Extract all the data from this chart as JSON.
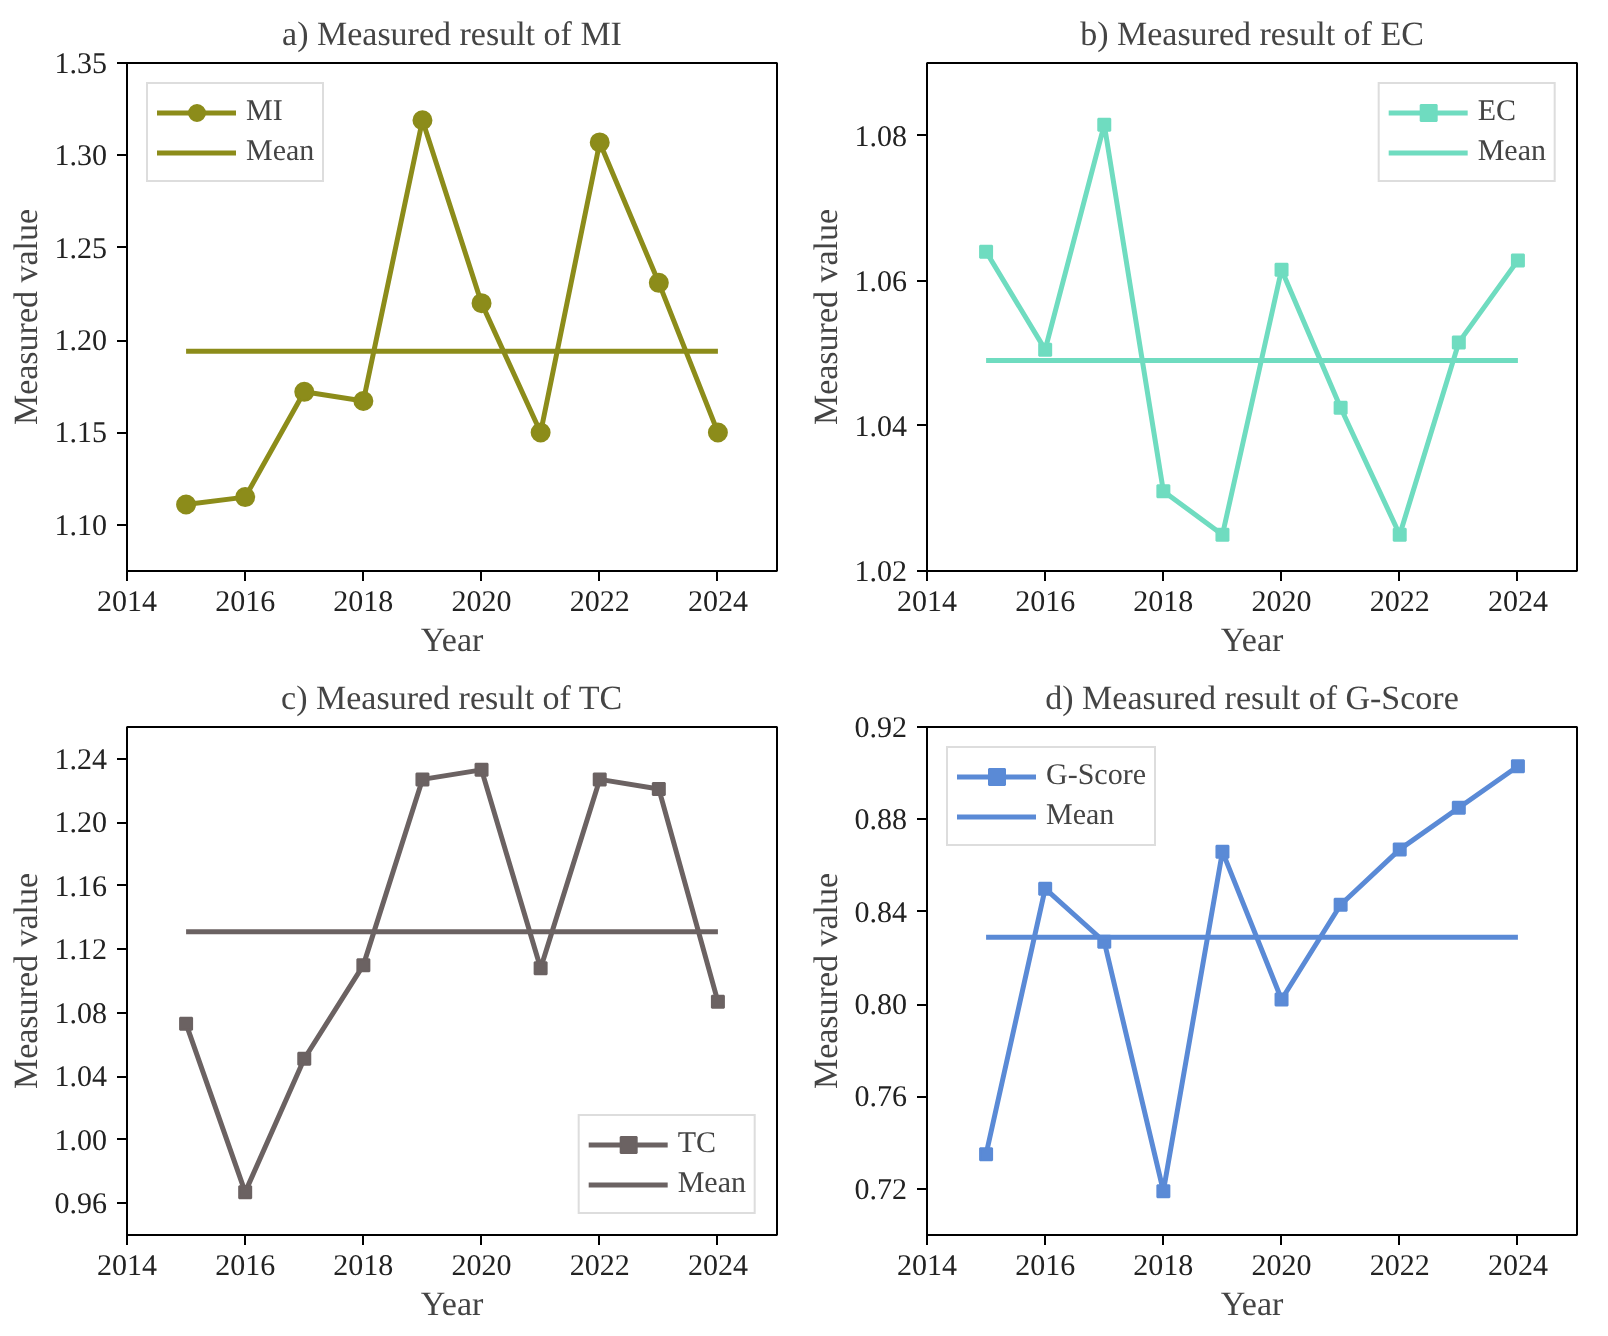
{
  "chart_data": [
    {
      "type": "line",
      "title": "a) Measured result of MI",
      "xlabel": "Year",
      "ylabel": "Measured value",
      "x": [
        2015,
        2016,
        2017,
        2018,
        2019,
        2020,
        2021,
        2022,
        2023,
        2024
      ],
      "series": [
        {
          "name": "MI",
          "color": "#8c8c1a",
          "marker": "circle",
          "values": [
            1.111,
            1.115,
            1.172,
            1.167,
            1.319,
            1.22,
            1.15,
            1.307,
            1.231,
            1.15
          ]
        }
      ],
      "ref_lines": [
        {
          "axis": "y",
          "value": 1.194,
          "label": "Mean",
          "color": "#8c8c1a",
          "line_style": "solid"
        }
      ],
      "xlim": [
        2014,
        2025
      ],
      "xticks": [
        2014,
        2016,
        2018,
        2020,
        2022,
        2024
      ],
      "ylim": [
        1.075,
        1.35
      ],
      "yticks": [
        {
          "value": 1.1,
          "label": "1.10"
        },
        {
          "value": 1.15,
          "label": "1.15"
        },
        {
          "value": 1.2,
          "label": "1.20"
        },
        {
          "value": 1.25,
          "label": "1.25"
        },
        {
          "value": 1.3,
          "label": "1.30"
        },
        {
          "value": 1.35,
          "label": "1.35"
        }
      ],
      "legend": "top left",
      "line_style": "solid"
    },
    {
      "type": "line",
      "title": "b) Measured result of EC",
      "xlabel": "Year",
      "ylabel": "Measured value",
      "x": [
        2015,
        2016,
        2017,
        2018,
        2019,
        2020,
        2021,
        2022,
        2023,
        2024
      ],
      "series": [
        {
          "name": "EC",
          "color": "#6fdcc0",
          "marker": "square",
          "values": [
            1.064,
            1.0505,
            1.0815,
            1.031,
            1.025,
            1.0615,
            1.0425,
            1.025,
            1.0515,
            1.0628
          ]
        }
      ],
      "ref_lines": [
        {
          "axis": "y",
          "value": 1.049,
          "label": "Mean",
          "color": "#6fdcc0",
          "line_style": "solid"
        }
      ],
      "xlim": [
        2014,
        2025
      ],
      "xticks": [
        2014,
        2016,
        2018,
        2020,
        2022,
        2024
      ],
      "ylim": [
        1.02,
        1.09
      ],
      "yticks": [
        {
          "value": 1.02,
          "label": "1.02"
        },
        {
          "value": 1.04,
          "label": "1.04"
        },
        {
          "value": 1.06,
          "label": "1.06"
        },
        {
          "value": 1.08,
          "label": "1.08"
        }
      ],
      "legend": "top right",
      "line_style": "solid"
    },
    {
      "type": "line",
      "title": "c) Measured result of TC",
      "xlabel": "Year",
      "ylabel": "Measured value",
      "x": [
        2015,
        2016,
        2017,
        2018,
        2019,
        2020,
        2021,
        2022,
        2023,
        2024
      ],
      "series": [
        {
          "name": "TC",
          "color": "#6b6262",
          "marker": "square",
          "values": [
            1.073,
            0.967,
            1.051,
            1.11,
            1.227,
            1.233,
            1.108,
            1.227,
            1.221,
            1.087
          ]
        }
      ],
      "ref_lines": [
        {
          "axis": "y",
          "value": 1.131,
          "label": "Mean",
          "color": "#6b6262",
          "line_style": "solid"
        }
      ],
      "xlim": [
        2014,
        2025
      ],
      "xticks": [
        2014,
        2016,
        2018,
        2020,
        2022,
        2024
      ],
      "ylim": [
        0.94,
        1.26
      ],
      "yticks": [
        {
          "value": 0.96,
          "label": "0.96"
        },
        {
          "value": 1.0,
          "label": "1.00"
        },
        {
          "value": 1.04,
          "label": "1.04"
        },
        {
          "value": 1.08,
          "label": "1.08"
        },
        {
          "value": 1.12,
          "label": "1.12"
        },
        {
          "value": 1.16,
          "label": "1.16"
        },
        {
          "value": 1.2,
          "label": "1.20"
        },
        {
          "value": 1.24,
          "label": "1.24"
        }
      ],
      "legend": "bottom right",
      "line_style": "solid"
    },
    {
      "type": "line",
      "title": "d) Measured result of G-Score",
      "xlabel": "Year",
      "ylabel": "Measured value",
      "x": [
        2015,
        2016,
        2017,
        2018,
        2019,
        2020,
        2021,
        2022,
        2023,
        2024
      ],
      "series": [
        {
          "name": "G-Score",
          "color": "#5a8ad6",
          "marker": "square",
          "values": [
            0.735,
            0.85,
            0.827,
            0.719,
            0.866,
            0.802,
            0.843,
            0.867,
            0.885,
            0.903
          ]
        }
      ],
      "ref_lines": [
        {
          "axis": "y",
          "value": 0.829,
          "label": "Mean",
          "color": "#5a8ad6",
          "line_style": "solid"
        }
      ],
      "xlim": [
        2014,
        2025
      ],
      "xticks": [
        2014,
        2016,
        2018,
        2020,
        2022,
        2024
      ],
      "ylim": [
        0.7,
        0.92
      ],
      "yticks": [
        {
          "value": 0.72,
          "label": "0.72"
        },
        {
          "value": 0.76,
          "label": "0.76"
        },
        {
          "value": 0.8,
          "label": "0.80"
        },
        {
          "value": 0.84,
          "label": "0.84"
        },
        {
          "value": 0.88,
          "label": "0.88"
        },
        {
          "value": 0.92,
          "label": "0.92"
        }
      ],
      "legend": "top left",
      "line_style": "solid"
    }
  ]
}
